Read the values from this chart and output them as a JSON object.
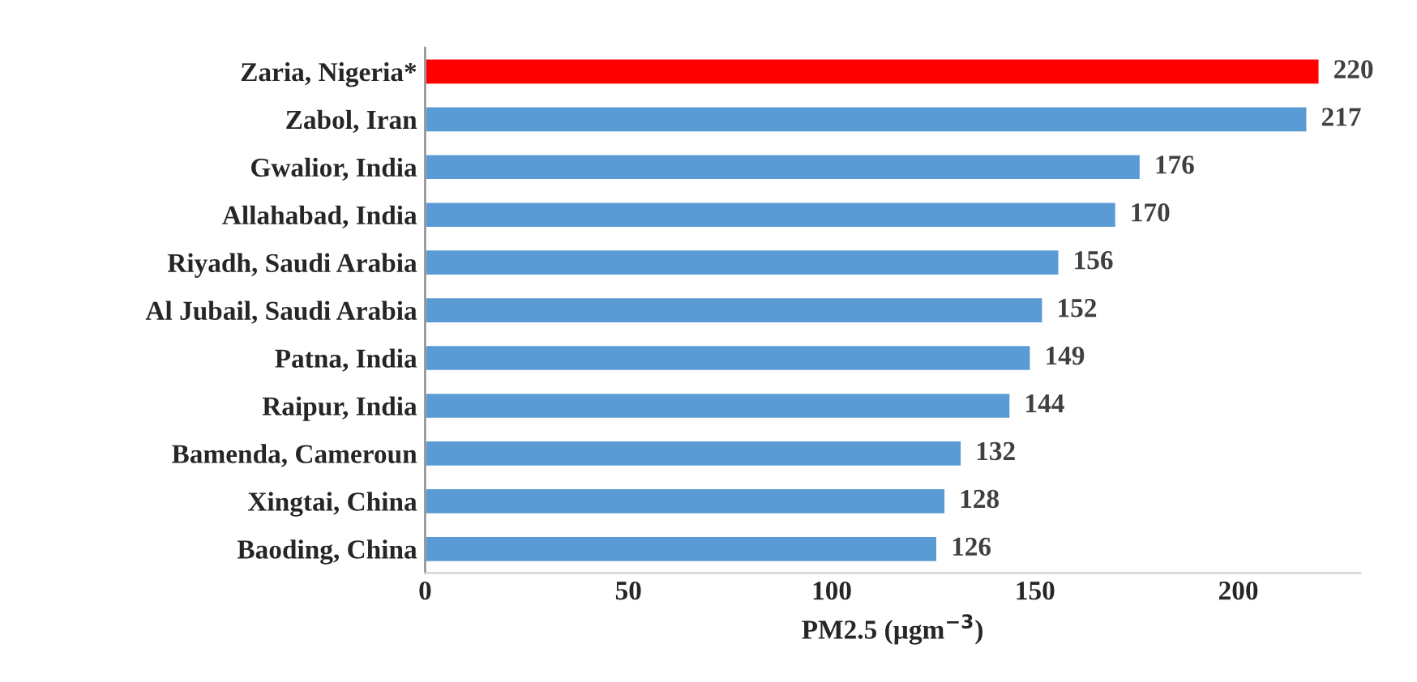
{
  "chart_data": {
    "type": "bar",
    "orientation": "horizontal",
    "xlabel": "PM2.5 (µgm$^{−3}$)",
    "categories": [
      "Zaria, Nigeria*",
      "Zabol, Iran",
      "Gwalior, India",
      "Allahabad, India",
      "Riyadh, Saudi Arabia",
      "Al Jubail, Saudi Arabia",
      "Patna, India",
      "Raipur, India",
      "Bamenda, Cameroun",
      "Xingtai, China",
      "Baoding, China"
    ],
    "values": [
      220,
      217,
      176,
      170,
      156,
      152,
      149,
      144,
      132,
      128,
      126
    ],
    "colors": [
      "#ff0000",
      "#5b9bd5",
      "#5b9bd5",
      "#5b9bd5",
      "#5b9bd5",
      "#5b9bd5",
      "#5b9bd5",
      "#5b9bd5",
      "#5b9bd5",
      "#5b9bd5",
      "#5b9bd5"
    ],
    "xlim": [
      0,
      230
    ],
    "xticks": [
      0,
      50,
      100,
      150,
      200
    ],
    "data_labels": true,
    "grid": false
  }
}
